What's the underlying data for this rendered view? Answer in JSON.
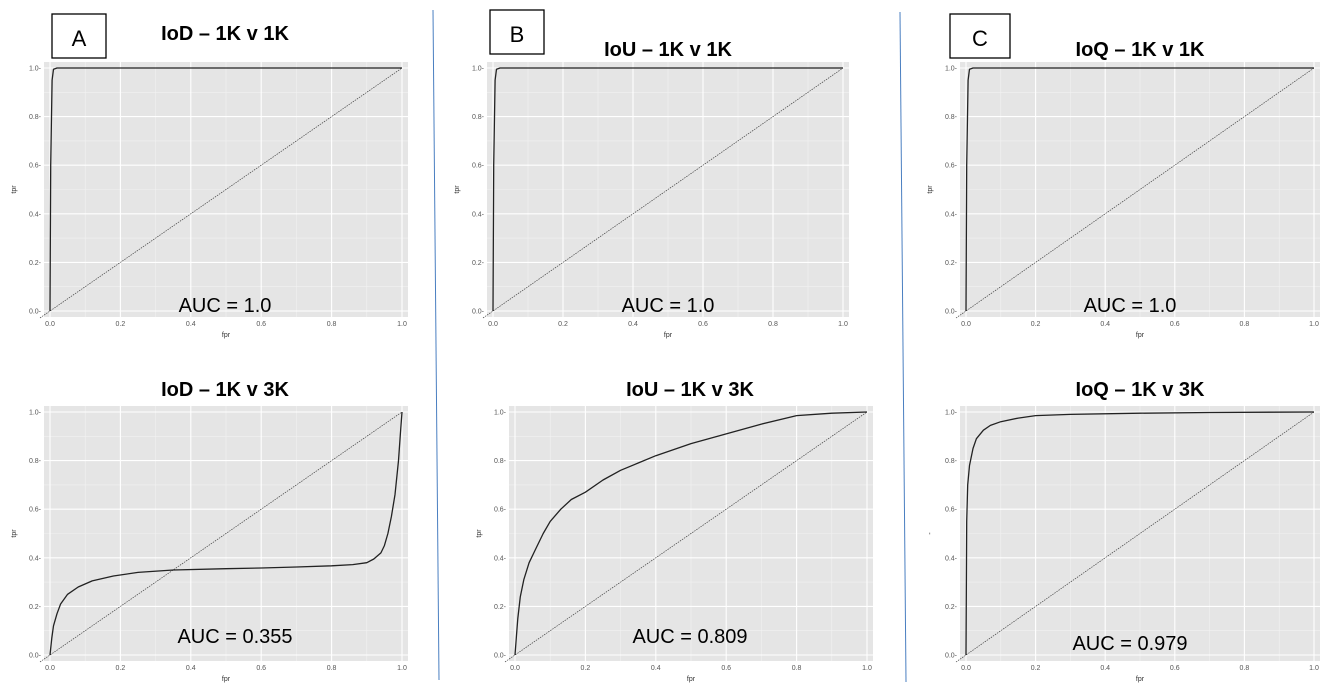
{
  "panel_labels": [
    "A",
    "B",
    "C"
  ],
  "colors": {
    "plot_bg": "#e5e5e5",
    "grid_major": "#ffffff",
    "roc_line": "#222222",
    "diagonal": "#444444",
    "divider": "#4a7fc1"
  },
  "chart_data": [
    {
      "type": "line",
      "title": "IoD – 1K v 1K",
      "xlabel": "fpr",
      "ylabel": "tpr",
      "xlim": [
        0,
        1
      ],
      "ylim": [
        0,
        1
      ],
      "x_ticks": [
        "0.0",
        "0.2",
        "0.4",
        "0.6",
        "0.8",
        "1.0"
      ],
      "y_ticks": [
        "0.0",
        "0.2",
        "0.4",
        "0.6",
        "0.8",
        "1.0"
      ],
      "annotation": "AUC = 1.0",
      "series": [
        {
          "x": [
            0,
            0.002,
            0.006,
            0.01,
            0.02,
            1.0
          ],
          "y": [
            0,
            0.6,
            0.95,
            0.995,
            1.0,
            1.0
          ]
        }
      ],
      "reference_diagonal": true
    },
    {
      "type": "line",
      "title": "IoU – 1K v 1K",
      "xlabel": "fpr",
      "ylabel": "tpr",
      "xlim": [
        0,
        1
      ],
      "ylim": [
        0,
        1
      ],
      "x_ticks": [
        "0.0",
        "0.2",
        "0.4",
        "0.6",
        "0.8",
        "1.0"
      ],
      "y_ticks": [
        "0.0",
        "0.2",
        "0.4",
        "0.6",
        "0.8",
        "1.0"
      ],
      "annotation": "AUC = 1.0",
      "series": [
        {
          "x": [
            0,
            0.002,
            0.006,
            0.01,
            0.02,
            1.0
          ],
          "y": [
            0,
            0.6,
            0.95,
            0.995,
            1.0,
            1.0
          ]
        }
      ],
      "reference_diagonal": true
    },
    {
      "type": "line",
      "title": "IoQ – 1K v 1K",
      "xlabel": "fpr",
      "ylabel": "tpr",
      "xlim": [
        0,
        1
      ],
      "ylim": [
        0,
        1
      ],
      "x_ticks": [
        "0.0",
        "0.2",
        "0.4",
        "0.6",
        "0.8",
        "1.0"
      ],
      "y_ticks": [
        "0.0",
        "0.2",
        "0.4",
        "0.6",
        "0.8",
        "1.0"
      ],
      "annotation": "AUC = 1.0",
      "series": [
        {
          "x": [
            0,
            0.002,
            0.006,
            0.01,
            0.02,
            1.0
          ],
          "y": [
            0,
            0.6,
            0.95,
            0.995,
            1.0,
            1.0
          ]
        }
      ],
      "reference_diagonal": true
    },
    {
      "type": "line",
      "title": "IoD – 1K v 3K",
      "xlabel": "fpr",
      "ylabel": "tpr",
      "xlim": [
        0,
        1
      ],
      "ylim": [
        0,
        1
      ],
      "x_ticks": [
        "0.0",
        "0.2",
        "0.4",
        "0.6",
        "0.8",
        "1.0"
      ],
      "y_ticks": [
        "0.0",
        "0.2",
        "0.4",
        "0.6",
        "0.8",
        "1.0"
      ],
      "annotation": "AUC = 0.355",
      "series": [
        {
          "x": [
            0,
            0.005,
            0.01,
            0.02,
            0.03,
            0.05,
            0.08,
            0.12,
            0.18,
            0.25,
            0.35,
            0.5,
            0.6,
            0.7,
            0.8,
            0.86,
            0.9,
            0.92,
            0.94,
            0.95,
            0.96,
            0.97,
            0.98,
            0.99,
            0.995,
            1.0
          ],
          "y": [
            0,
            0.07,
            0.12,
            0.17,
            0.21,
            0.25,
            0.28,
            0.305,
            0.325,
            0.34,
            0.35,
            0.355,
            0.358,
            0.362,
            0.367,
            0.372,
            0.38,
            0.395,
            0.42,
            0.45,
            0.5,
            0.57,
            0.66,
            0.8,
            0.9,
            1.0
          ]
        }
      ],
      "reference_diagonal": true
    },
    {
      "type": "line",
      "title": "IoU – 1K v 3K",
      "xlabel": "fpr",
      "ylabel": "tpr",
      "xlim": [
        0,
        1
      ],
      "ylim": [
        0,
        1
      ],
      "x_ticks": [
        "0.0",
        "0.2",
        "0.4",
        "0.6",
        "0.8",
        "1.0"
      ],
      "y_ticks": [
        "0.0",
        "0.2",
        "0.4",
        "0.6",
        "0.8",
        "1.0"
      ],
      "annotation": "AUC = 0.809",
      "series": [
        {
          "x": [
            0,
            0.003,
            0.008,
            0.015,
            0.025,
            0.04,
            0.06,
            0.08,
            0.1,
            0.13,
            0.16,
            0.2,
            0.25,
            0.3,
            0.35,
            0.4,
            0.5,
            0.6,
            0.7,
            0.8,
            0.9,
            1.0
          ],
          "y": [
            0,
            0.06,
            0.15,
            0.24,
            0.31,
            0.38,
            0.44,
            0.5,
            0.55,
            0.6,
            0.64,
            0.67,
            0.72,
            0.76,
            0.79,
            0.82,
            0.87,
            0.91,
            0.95,
            0.985,
            0.995,
            1.0
          ]
        }
      ],
      "reference_diagonal": true
    },
    {
      "type": "line",
      "title": "IoQ – 1K v 3K",
      "xlabel": "fpr",
      "ylabel": "",
      "ylabel_glyph": "-",
      "xlim": [
        0,
        1
      ],
      "ylim": [
        0,
        1
      ],
      "x_ticks": [
        "0.0",
        "0.2",
        "0.4",
        "0.6",
        "0.8",
        "1.0"
      ],
      "y_ticks": [
        "0.0",
        "0.2",
        "0.4",
        "0.6",
        "0.8",
        "1.0"
      ],
      "annotation": "AUC = 0.979",
      "series": [
        {
          "x": [
            0,
            0.002,
            0.005,
            0.01,
            0.02,
            0.03,
            0.05,
            0.07,
            0.1,
            0.15,
            0.2,
            0.3,
            0.5,
            0.7,
            1.0
          ],
          "y": [
            0,
            0.55,
            0.7,
            0.78,
            0.85,
            0.89,
            0.925,
            0.945,
            0.96,
            0.975,
            0.985,
            0.99,
            0.995,
            0.998,
            1.0
          ]
        }
      ],
      "reference_diagonal": true
    }
  ]
}
